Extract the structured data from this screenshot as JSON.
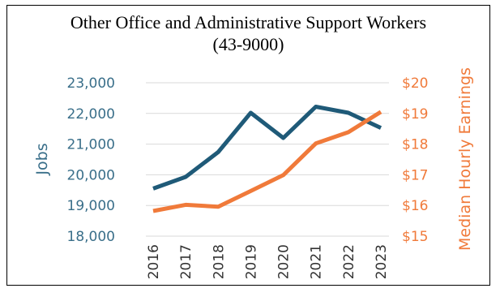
{
  "chart_data": {
    "type": "line",
    "title_lines": [
      "Other Office and Administrative Support Workers",
      "(43-9000)"
    ],
    "x": [
      "2016",
      "2017",
      "2018",
      "2019",
      "2020",
      "2021",
      "2022",
      "2023"
    ],
    "series": [
      {
        "name": "Jobs",
        "axis": "left",
        "color": "#1f5a78",
        "values": [
          19550,
          19930,
          20740,
          22020,
          21200,
          22220,
          22020,
          21530
        ]
      },
      {
        "name": "Median Hourly Earnings",
        "axis": "right",
        "color": "#f07a3a",
        "values": [
          15.82,
          16.02,
          15.96,
          16.47,
          16.99,
          18.02,
          18.39,
          19.05
        ]
      }
    ],
    "ylabel": "Jobs",
    "y2label": "Median Hourly Earnings",
    "ylim": [
      18000,
      23000
    ],
    "y2lim": [
      15,
      20
    ],
    "yticks": [
      "18,000",
      "19,000",
      "20,000",
      "21,000",
      "22,000",
      "23,000"
    ],
    "y2ticks": [
      "$15",
      "$16",
      "$17",
      "$18",
      "$19",
      "$20"
    ],
    "grid": true,
    "colors": {
      "left_axis": "#3a6f8a",
      "right_axis": "#f07a3a",
      "grid": "#d9d9d9"
    }
  }
}
